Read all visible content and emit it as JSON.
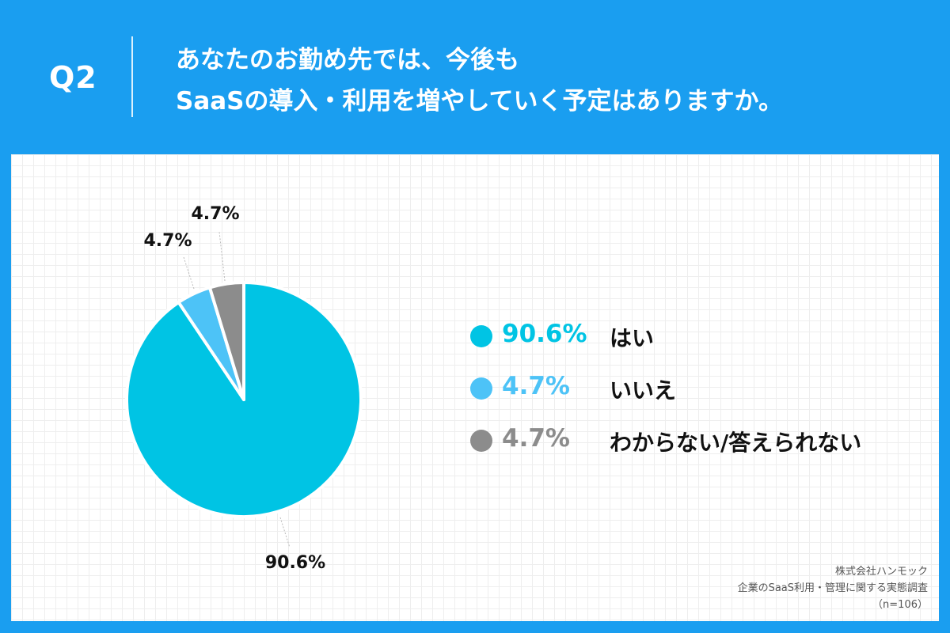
{
  "header": {
    "question": "Q2",
    "title_line1": "あなたのお勤め先では、今後も",
    "title_line2": "SaaSの導入・利用を増やしていく予定はありますか。"
  },
  "chart_data": {
    "type": "pie",
    "title": "",
    "slices": [
      {
        "label": "はい",
        "value": 90.6,
        "display": "90.6%",
        "color": "#00c4e4"
      },
      {
        "label": "いいえ",
        "value": 4.7,
        "display": "4.7%",
        "color": "#4dc3f7"
      },
      {
        "label": "わからない/答えられない",
        "value": 4.7,
        "display": "4.7%",
        "color": "#8c8c8c"
      }
    ],
    "start": "12 o'clock",
    "direction": "clockwise",
    "legend_position": "right"
  },
  "source": {
    "company": "株式会社ハンモック",
    "survey": "企業のSaaS利用・管理に関する実態調査",
    "sample": "（n=106）"
  }
}
